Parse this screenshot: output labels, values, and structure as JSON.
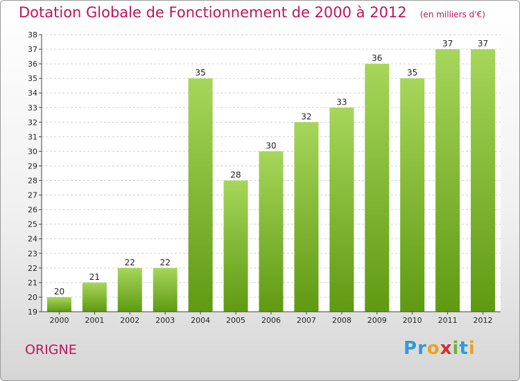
{
  "title": "Dotation Globale de Fonctionnement de 2000 à 2012",
  "unit_note": "(en milliers d'€)",
  "commune": "ORIGNE",
  "logo": {
    "letters": [
      "P",
      "r",
      "o",
      "x",
      "i",
      "t",
      "i"
    ],
    "colors": [
      "#2e9bd6",
      "#2e9bd6",
      "#f0a020",
      "#d62d2d",
      "#6cb33e",
      "#2e9bd6",
      "#f0a020"
    ]
  },
  "colors": {
    "bar_light": "#a6d65a",
    "bar_dark": "#5f9a12",
    "title": "#c0155a"
  },
  "chart_data": {
    "type": "bar",
    "title": "Dotation Globale de Fonctionnement de 2000 à 2012",
    "subtitle": "(en milliers d'€)",
    "categories": [
      "2000",
      "2001",
      "2002",
      "2003",
      "2004",
      "2005",
      "2006",
      "2007",
      "2008",
      "2009",
      "2010",
      "2011",
      "2012"
    ],
    "values": [
      20,
      21,
      22,
      22,
      35,
      28,
      30,
      32,
      33,
      36,
      35,
      37,
      37
    ],
    "ylim": [
      19,
      38
    ],
    "yticks": [
      19,
      20,
      21,
      22,
      23,
      24,
      25,
      26,
      27,
      28,
      29,
      30,
      31,
      32,
      33,
      34,
      35,
      36,
      37,
      38
    ],
    "grid": true
  }
}
